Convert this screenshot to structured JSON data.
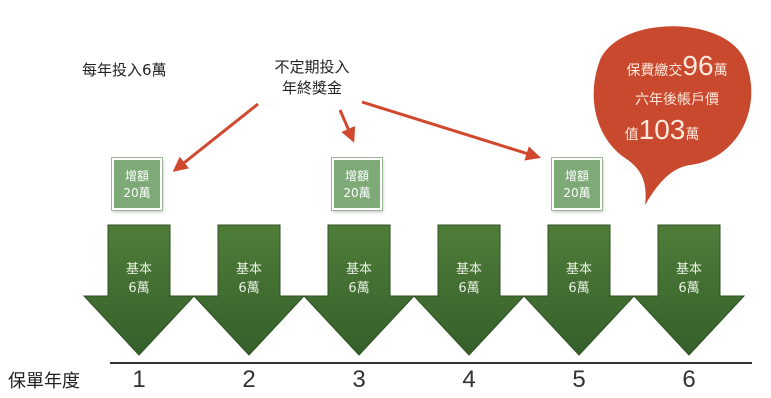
{
  "labels": {
    "annual": "每年投入6萬",
    "irregular_line1": "不定期投入",
    "irregular_line2": "年終獎金"
  },
  "axis": {
    "title": "保單年度",
    "years": [
      "1",
      "2",
      "3",
      "4",
      "5",
      "6"
    ]
  },
  "base_label_line1": "基本",
  "base_label_line2": "6萬",
  "bonus_label_line1": "增額",
  "bonus_label_line2": "20萬",
  "bubble": {
    "line1_prefix": "保費繳交",
    "line1_value": "96",
    "line1_suffix": "萬",
    "line2": "六年後帳戶價",
    "line3_prefix": "值",
    "line3_value": "103",
    "line3_suffix": "萬"
  },
  "colors": {
    "arrow_green": "#3f6a2c",
    "bonus_green": "#7eaa78",
    "pointer_red": "#d0482e",
    "bubble_red": "#c9492e"
  }
}
